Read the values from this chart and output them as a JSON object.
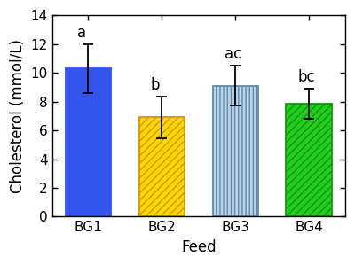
{
  "categories": [
    "BG1",
    "BG2",
    "BG3",
    "BG4"
  ],
  "values": [
    10.3,
    6.9,
    9.1,
    7.85
  ],
  "errors": [
    1.7,
    1.45,
    1.4,
    1.05
  ],
  "bar_facecolors": [
    "#3355EE",
    "#FFD700",
    "#B8D4E8",
    "#22CC22"
  ],
  "hatches": [
    "",
    "////",
    "||||",
    "////"
  ],
  "hatch_colors": [
    "#3355EE",
    "#CC9900",
    "#6688AA",
    "#119900"
  ],
  "labels": [
    "a",
    "b",
    "ac",
    "bc"
  ],
  "xlabel": "Feed",
  "ylabel": "Cholesterol (mmol/L)",
  "ylim": [
    0,
    14
  ],
  "yticks": [
    0,
    2,
    4,
    6,
    8,
    10,
    12,
    14
  ],
  "bar_width": 0.62,
  "label_fontsize": 12,
  "tick_fontsize": 11,
  "axis_label_fontsize": 12,
  "figsize": [
    4.0,
    2.99
  ],
  "dpi": 100
}
